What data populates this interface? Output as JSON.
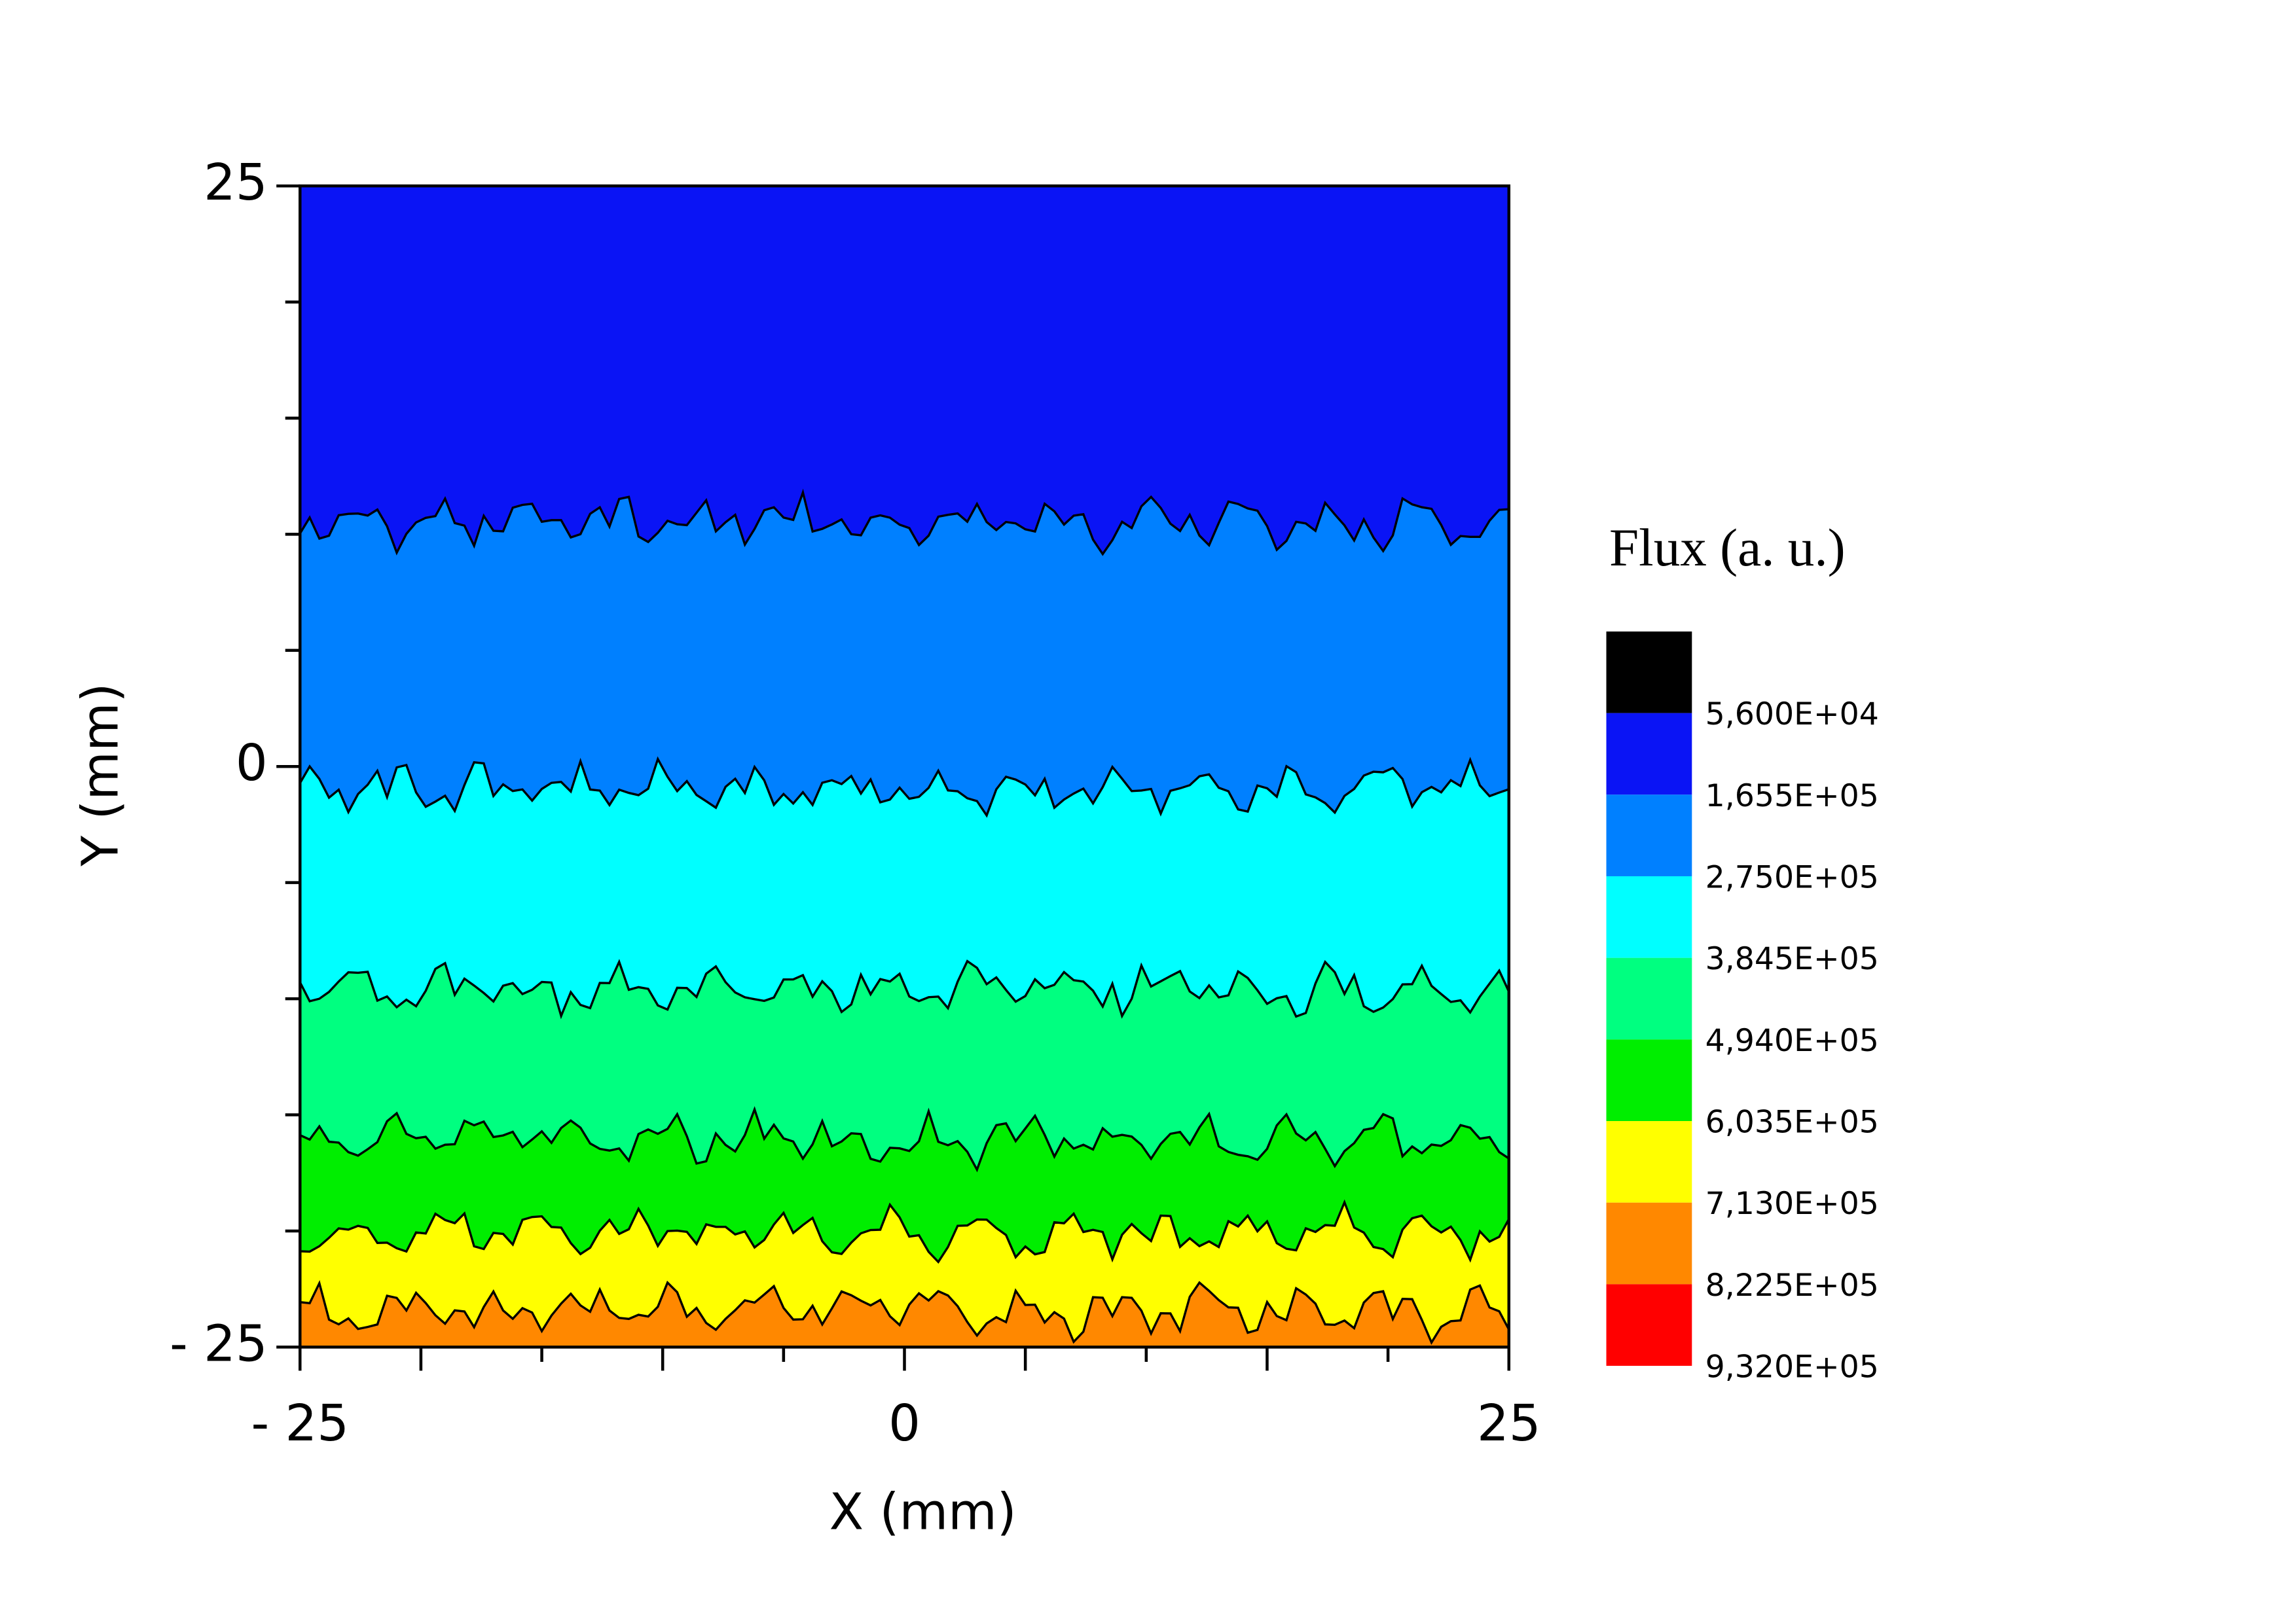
{
  "chart_data": {
    "type": "contour",
    "xlabel": "X (mm)",
    "ylabel": "Y (mm)",
    "xlim": [
      -25,
      25
    ],
    "ylim": [
      -25,
      25
    ],
    "xticks": [
      {
        "value": -25,
        "label": "- 25"
      },
      0,
      25
    ],
    "xminorticks": [
      -20,
      -15,
      -10,
      -5,
      5,
      10,
      15,
      20
    ],
    "yticks": [
      {
        "value": -25,
        "label": "- 25"
      },
      0,
      25
    ],
    "yminorticks": [
      -20,
      -15,
      -10,
      -5,
      5,
      10,
      15,
      20
    ],
    "contour_y": [
      10.5,
      -1,
      -9.6,
      -16,
      -20.1,
      -23.5
    ],
    "colorbar": {
      "title": "Flux (a. u.)",
      "ticks": [
        {
          "value": 56000,
          "label": "5,600E+04"
        },
        {
          "value": 165500,
          "label": "1,655E+05"
        },
        {
          "value": 275000,
          "label": "2,750E+05"
        },
        {
          "value": 384500,
          "label": "3,845E+05"
        },
        {
          "value": 494000,
          "label": "4,940E+05"
        },
        {
          "value": 603500,
          "label": "6,035E+05"
        },
        {
          "value": 713000,
          "label": "7,130E+05"
        },
        {
          "value": 822500,
          "label": "8,225E+05"
        },
        {
          "value": 932000,
          "label": "9,320E+05"
        }
      ],
      "colors": [
        "#000000",
        "#0a14f5",
        "#0080ff",
        "#00ffff",
        "#00ff80",
        "#00ee00",
        "#ffff00",
        "#ff8800",
        "#ff0000"
      ]
    }
  }
}
